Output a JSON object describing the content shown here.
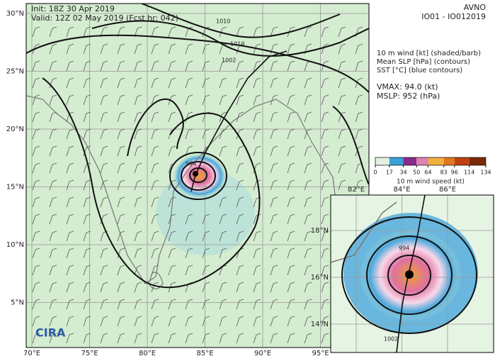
{
  "header": {
    "init": "Init:  18Z 30 Apr 2019",
    "valid": "Valid: 12Z 02 May 2019 (Fcst hr: 042)",
    "model": "AVNO",
    "storm": "IO01 - IO012019"
  },
  "legend": {
    "lines": [
      "10 m wind [kt] (shaded/barb)",
      "Mean SLP [hPa] (contours)",
      "SST [°C] (blue contours)"
    ],
    "vmax": "VMAX:  94.0 (kt)",
    "mslp": "MSLP:  952 (hPa)"
  },
  "colorbar": {
    "label": "10 m wind speed (kt)",
    "ticks": [
      0,
      17,
      34,
      50,
      64,
      83,
      96,
      114,
      134
    ],
    "colors": [
      "#e3f2e0",
      "#3ca0d8",
      "#8a2a8a",
      "#e080b0",
      "#f0b040",
      "#e07820",
      "#c04010",
      "#7a2a08"
    ]
  },
  "map": {
    "lat_labels": [
      "30°N",
      "25°N",
      "20°N",
      "15°N",
      "10°N",
      "5°N"
    ],
    "lon_labels": [
      "70°E",
      "75°E",
      "80°E",
      "85°E",
      "90°E",
      "95°E"
    ],
    "contour_labels": [
      "1010",
      "1010",
      "1002",
      "994"
    ]
  },
  "inset": {
    "lat_labels": [
      "18°N",
      "16°N",
      "14°N"
    ],
    "lon_labels": [
      "82°E",
      "84°E",
      "86°E"
    ],
    "contour_labels": [
      "994",
      "1002"
    ]
  },
  "logo": "CIRA"
}
